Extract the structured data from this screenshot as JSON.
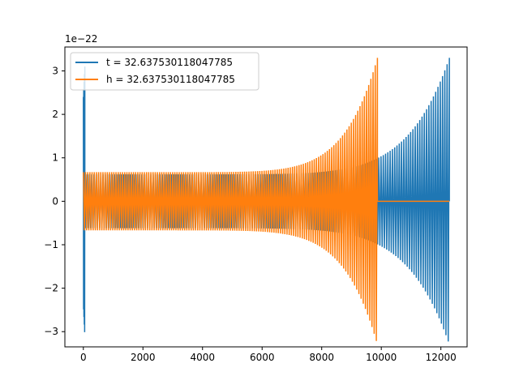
{
  "chart_data": {
    "type": "line",
    "title": "",
    "xlabel": "",
    "ylabel": "",
    "y_offset_label": "1e−22",
    "xlim": [
      -620,
      12880
    ],
    "ylim": [
      -3.35,
      3.55
    ],
    "x_ticks": [
      0,
      2000,
      4000,
      6000,
      8000,
      10000,
      12000
    ],
    "x_tick_labels": [
      "0",
      "2000",
      "4000",
      "6000",
      "8000",
      "10000",
      "12000"
    ],
    "y_ticks": [
      -3,
      -2,
      -1,
      0,
      1,
      2,
      3
    ],
    "y_tick_labels": [
      "−3",
      "−2",
      "−1",
      "0",
      "1",
      "2",
      "3"
    ],
    "grid": false,
    "legend_position": "top-left",
    "series": [
      {
        "name": "t = 32.637530118047785",
        "color": "#1f77b4",
        "segments": [
          {
            "x_start": 0,
            "x_end": 50,
            "cycles": 4,
            "amp_start": 2.4,
            "amp_end": 3.1,
            "kind": "spike"
          },
          {
            "x_start": 50,
            "x_end": 12285,
            "cycles": 160,
            "amp_start": 0.62,
            "amp_end": 3.3,
            "kind": "chirp"
          }
        ]
      },
      {
        "name": "h = 32.637530118047785",
        "color": "#ff7f0e",
        "segments": [
          {
            "x_start": 0,
            "x_end": 9870,
            "cycles": 135,
            "amp_start": 0.67,
            "amp_end": 3.3,
            "kind": "chirp"
          },
          {
            "x_start": 9870,
            "x_end": 12285,
            "value": 0,
            "kind": "flat"
          }
        ]
      }
    ],
    "annotations": [
      {
        "series": "h = 32.637530118047785",
        "x_start": 0,
        "x_end": 2500,
        "value": 0,
        "kind": "flat-overlay"
      }
    ]
  }
}
